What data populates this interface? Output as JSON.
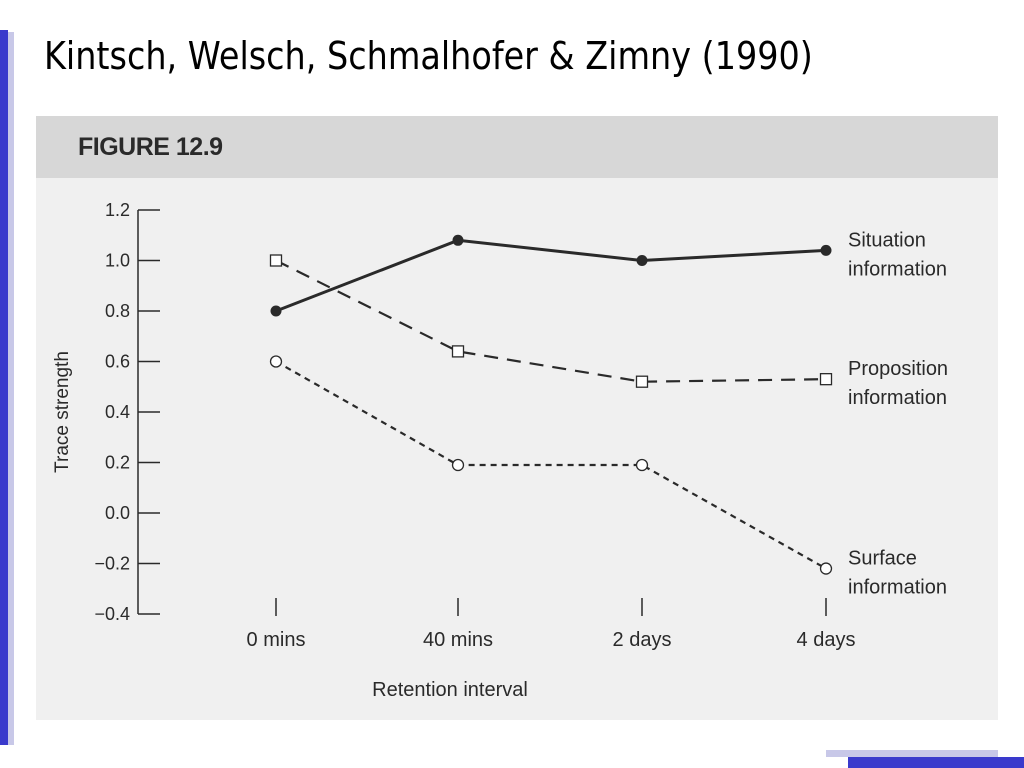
{
  "slide": {
    "title": "Kintsch, Welsch, Schmalhofer & Zimny (1990)",
    "accent_color": "#3a3acc"
  },
  "figure": {
    "label": "FIGURE 12.9"
  },
  "chart_data": {
    "type": "line",
    "title": "",
    "xlabel": "Retention interval",
    "ylabel": "Trace strength",
    "categories": [
      "0 mins",
      "40 mins",
      "2 days",
      "4 days"
    ],
    "ylim": [
      -0.4,
      1.2
    ],
    "yticks": [
      "1.2",
      "1.0",
      "0.8",
      "0.6",
      "0.4",
      "0.2",
      "0.0",
      "−0.2",
      "−0.4"
    ],
    "grid": false,
    "legend": "direct labels at right end of each line",
    "series": [
      {
        "name": "Situation information",
        "label_lines": [
          "Situation",
          "information"
        ],
        "values": [
          0.8,
          1.08,
          1.0,
          1.04
        ],
        "line_style": "solid",
        "marker": "filled-circle"
      },
      {
        "name": "Proposition information",
        "label_lines": [
          "Proposition",
          "information"
        ],
        "values": [
          1.0,
          0.64,
          0.52,
          0.53
        ],
        "line_style": "long-dash",
        "marker": "open-square"
      },
      {
        "name": "Surface information",
        "label_lines": [
          "Surface",
          "information"
        ],
        "values": [
          0.6,
          0.19,
          0.19,
          -0.22
        ],
        "line_style": "short-dash",
        "marker": "open-circle"
      }
    ]
  }
}
